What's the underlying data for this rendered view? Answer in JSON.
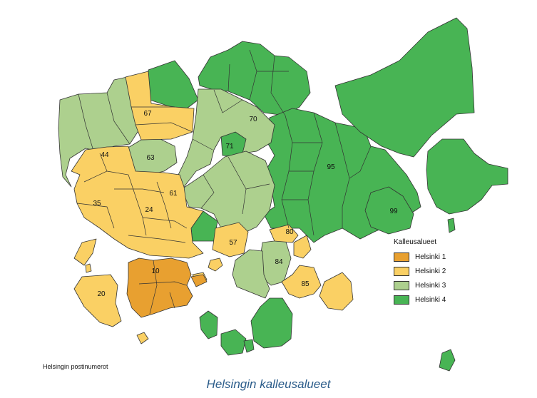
{
  "caption": "Helsingin kalleusalueet",
  "source_note": "Helsingin postinumerot",
  "legend": {
    "title": "Kalleusalueet",
    "items": [
      {
        "label": "Helsinki 1",
        "color": "#e8a030"
      },
      {
        "label": "Helsinki 2",
        "color": "#fad064"
      },
      {
        "label": "Helsinki 3",
        "color": "#add08e"
      },
      {
        "label": "Helsinki 4",
        "color": "#48b454"
      }
    ]
  },
  "district_labels": [
    "67",
    "70",
    "71",
    "44",
    "63",
    "95",
    "35",
    "61",
    "24",
    "99",
    "80",
    "57",
    "84",
    "10",
    "85",
    "20"
  ]
}
